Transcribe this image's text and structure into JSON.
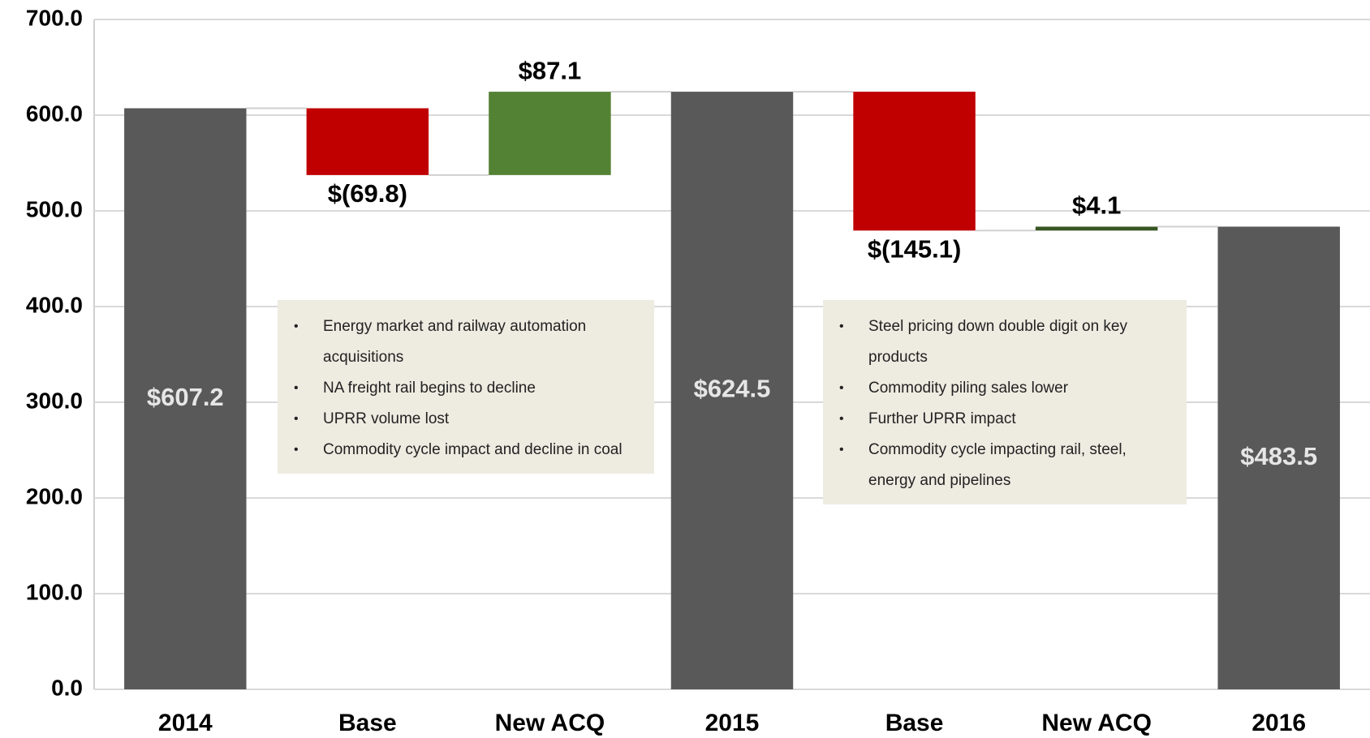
{
  "chart_data": {
    "type": "waterfall",
    "categories": [
      "2014",
      "Base",
      "New ACQ",
      "2015",
      "Base",
      "New ACQ",
      "2016"
    ],
    "values": [
      607.2,
      -69.8,
      87.1,
      624.5,
      -145.1,
      4.1,
      483.5
    ],
    "value_labels": [
      "$607.2",
      "$(69.8)",
      "$87.1",
      "$624.5",
      "$(145.1)",
      "$4.1",
      "$483.5"
    ],
    "bar_kinds": [
      "total",
      "decrease",
      "increase",
      "total",
      "decrease",
      "increase",
      "total"
    ],
    "colors": [
      "#595959",
      "#c00000",
      "#548235",
      "#595959",
      "#c00000",
      "#375623",
      "#595959"
    ],
    "ylim": [
      0,
      700
    ],
    "yticks": [
      {
        "value": 0,
        "label": "0.0"
      },
      {
        "value": 100,
        "label": "100.0"
      },
      {
        "value": 200,
        "label": "200.0"
      },
      {
        "value": 300,
        "label": "300.0"
      },
      {
        "value": 400,
        "label": "400.0"
      },
      {
        "value": 500,
        "label": "500.0"
      },
      {
        "value": 600,
        "label": "600.0"
      },
      {
        "value": 700,
        "label": "700.0"
      }
    ],
    "grid": true,
    "annotations": [
      {
        "items": [
          "Energy market and railway automation acquisitions",
          "NA freight rail begins to decline",
          "UPRR volume lost",
          "Commodity cycle impact and decline in coal"
        ]
      },
      {
        "items": [
          "Steel pricing down double digit on key products",
          "Commodity piling sales lower",
          "Further UPRR impact",
          "Commodity cycle impacting rail, steel, energy and pipelines"
        ]
      }
    ]
  }
}
